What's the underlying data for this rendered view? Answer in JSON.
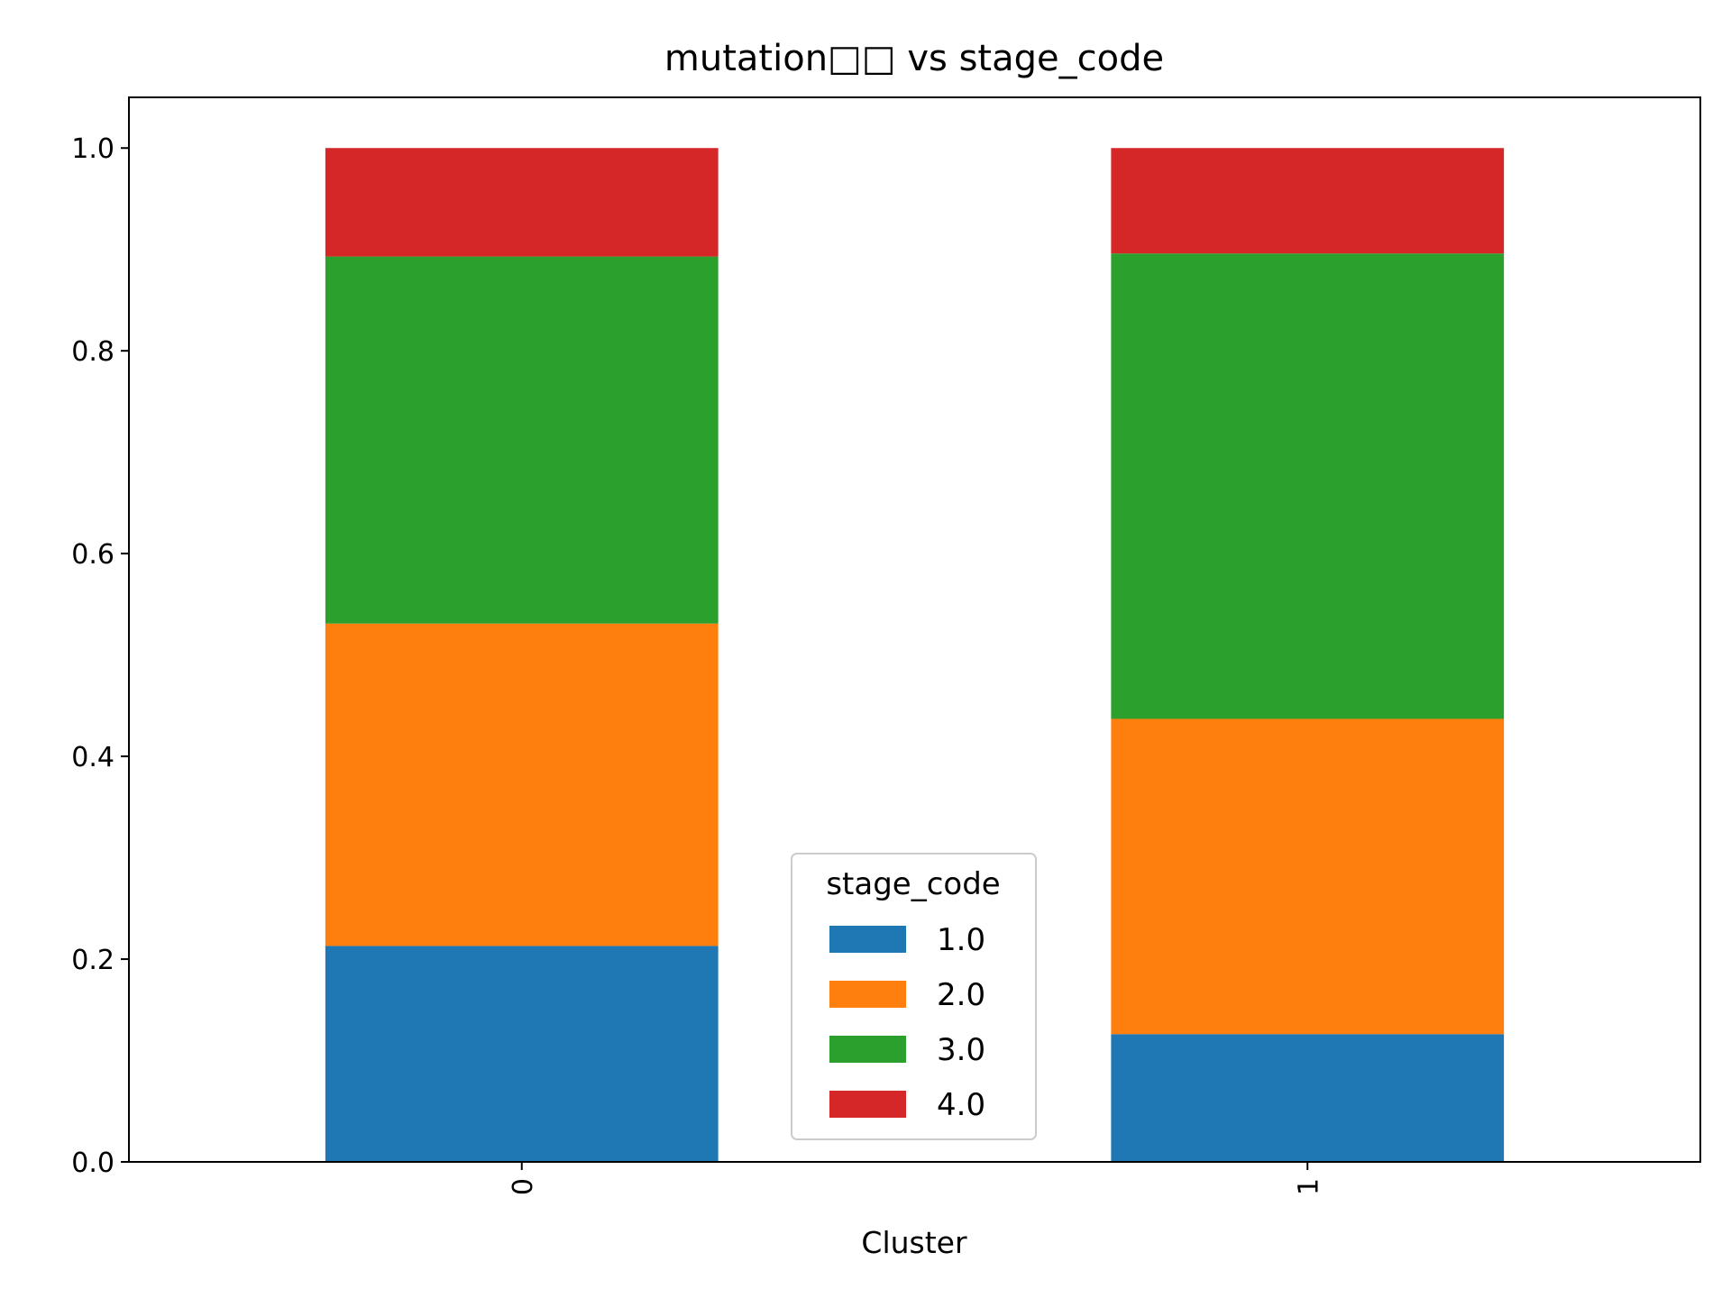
{
  "chart_data": {
    "type": "bar",
    "stacked": true,
    "title": "mutation□□ vs stage_code",
    "xlabel": "Cluster",
    "ylabel": "",
    "categories": [
      "0",
      "1"
    ],
    "ylim": [
      0,
      1.05
    ],
    "yticks": [
      "0.0",
      "0.2",
      "0.4",
      "0.6",
      "0.8",
      "1.0"
    ],
    "grid": false,
    "legend": {
      "title": "stage_code",
      "position": "bottom-center"
    },
    "series": [
      {
        "name": "1.0",
        "color": "#1f77b4",
        "values": [
          0.213,
          0.126
        ]
      },
      {
        "name": "2.0",
        "color": "#ff7f0e",
        "values": [
          0.318,
          0.311
        ]
      },
      {
        "name": "3.0",
        "color": "#2ca02c",
        "values": [
          0.362,
          0.459
        ]
      },
      {
        "name": "4.0",
        "color": "#d62728",
        "values": [
          0.107,
          0.104
        ]
      }
    ]
  }
}
